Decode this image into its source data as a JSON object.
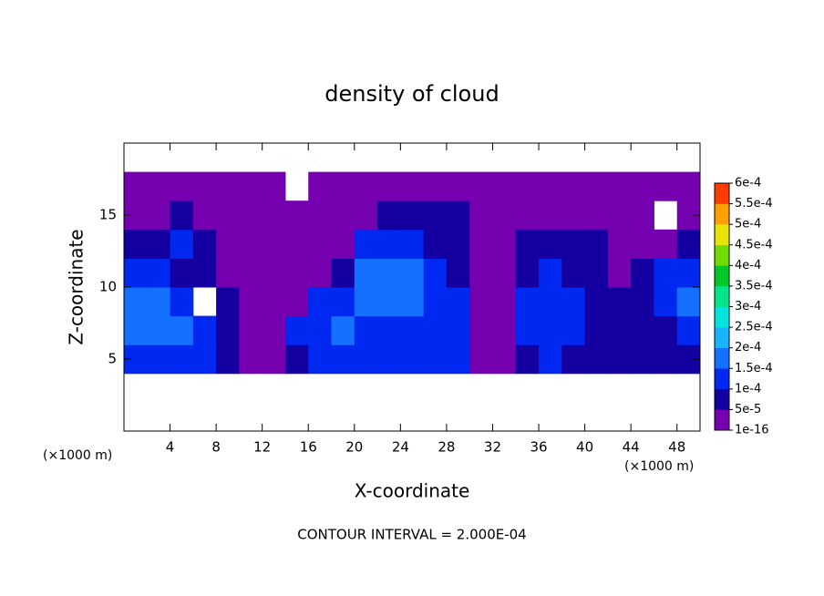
{
  "chart_data": {
    "type": "contour",
    "title": "density of cloud",
    "x_label": "X-coordinate",
    "y_label": "Z-coordinate",
    "x_unit": "(×1000 m)",
    "x_unit_right": "(×1000 m)",
    "footer": "CONTOUR INTERVAL = 2.000E-04",
    "xlim": [
      0,
      50
    ],
    "ylim": [
      0,
      20
    ],
    "xticks": [
      4,
      8,
      12,
      16,
      20,
      24,
      28,
      32,
      36,
      40,
      44,
      48
    ],
    "yticks": [
      5,
      10,
      15
    ],
    "x": [
      1,
      3,
      5,
      7,
      9,
      11,
      13,
      15,
      17,
      19,
      21,
      23,
      25,
      27,
      29,
      31,
      33,
      35,
      37,
      39,
      41,
      43,
      45,
      47,
      49
    ],
    "y": [
      1,
      3,
      5,
      7,
      9,
      11,
      13,
      15,
      17,
      19
    ],
    "z": [
      [
        null,
        null,
        null,
        null,
        null,
        null,
        null,
        null,
        null,
        null,
        null,
        null,
        null,
        null,
        null,
        null,
        null,
        null,
        null,
        null,
        null,
        null,
        null,
        null,
        null
      ],
      [
        null,
        null,
        null,
        null,
        null,
        null,
        null,
        null,
        null,
        null,
        null,
        null,
        null,
        null,
        null,
        null,
        null,
        null,
        null,
        null,
        null,
        null,
        null,
        null,
        null
      ],
      [
        0.00012,
        0.00013,
        0.00012,
        0.0001,
        7e-05,
        3e-05,
        2e-05,
        8e-05,
        0.0001,
        0.00011,
        0.00012,
        0.00012,
        0.00011,
        0.00011,
        0.0001,
        3e-05,
        2e-05,
        8e-05,
        0.0001,
        9e-05,
        8e-05,
        6e-05,
        8e-05,
        7e-05,
        9e-05
      ],
      [
        0.00019,
        0.00018,
        0.00015,
        0.00011,
        8e-05,
        4e-05,
        3e-05,
        0.00012,
        0.00014,
        0.00015,
        0.00014,
        0.00013,
        0.00013,
        0.00012,
        0.00011,
        3e-05,
        2e-05,
        0.0001,
        0.00012,
        0.00011,
        9e-05,
        7e-05,
        8e-05,
        9e-05,
        0.00012
      ],
      [
        0.00019,
        0.00017,
        0.00012,
        null,
        6e-05,
        3e-05,
        2e-05,
        4e-05,
        0.0001,
        0.00012,
        0.00015,
        0.00016,
        0.00015,
        0.00013,
        0.00011,
        4e-05,
        3e-05,
        0.0001,
        0.00013,
        0.00012,
        8e-05,
        6e-05,
        8e-05,
        0.00011,
        0.00015
      ],
      [
        0.00012,
        0.0001,
        8e-05,
        5e-05,
        3e-05,
        2e-05,
        2e-05,
        2e-05,
        2e-05,
        8e-05,
        0.00016,
        0.00018,
        0.00016,
        0.00013,
        9e-05,
        3e-05,
        2e-05,
        9e-05,
        0.00011,
        9e-05,
        6e-05,
        4e-05,
        7e-05,
        0.0001,
        0.0001
      ],
      [
        6e-05,
        9e-05,
        0.0001,
        6e-05,
        3e-05,
        2e-05,
        2e-05,
        2e-05,
        2e-05,
        4e-05,
        0.0001,
        0.00012,
        0.00011,
        9e-05,
        6e-05,
        3e-05,
        2e-05,
        6e-05,
        8e-05,
        9e-05,
        7e-05,
        4e-05,
        3e-05,
        4e-05,
        5e-05
      ],
      [
        2e-05,
        3e-05,
        5e-05,
        3e-05,
        2e-05,
        2e-05,
        2e-05,
        2e-05,
        2e-05,
        2e-05,
        4e-05,
        6e-05,
        7e-05,
        6e-05,
        5e-05,
        3e-05,
        2e-05,
        2e-05,
        2e-05,
        4e-05,
        3e-05,
        2e-05,
        2e-05,
        null,
        2e-05
      ],
      [
        2e-05,
        2e-05,
        2e-05,
        2e-05,
        2e-05,
        2e-05,
        2e-05,
        null,
        2e-05,
        2e-05,
        2e-05,
        2e-05,
        2e-05,
        2e-05,
        2e-05,
        2e-05,
        2e-05,
        2e-05,
        2e-05,
        2e-05,
        2e-05,
        2e-05,
        2e-05,
        2e-05,
        2e-05
      ],
      [
        null,
        null,
        null,
        null,
        null,
        null,
        null,
        null,
        null,
        null,
        null,
        null,
        null,
        null,
        null,
        null,
        null,
        null,
        null,
        null,
        null,
        null,
        null,
        null,
        null
      ]
    ],
    "colorbar": {
      "ticks": [
        {
          "value": 1e-16,
          "label": "1e-16"
        },
        {
          "value": 5e-05,
          "label": "5e-5"
        },
        {
          "value": 0.0001,
          "label": "1e-4"
        },
        {
          "value": 0.00015,
          "label": "1.5e-4"
        },
        {
          "value": 0.0002,
          "label": "2e-4"
        },
        {
          "value": 0.00025,
          "label": "2.5e-4"
        },
        {
          "value": 0.0003,
          "label": "3e-4"
        },
        {
          "value": 0.00035,
          "label": "3.5e-4"
        },
        {
          "value": 0.0004,
          "label": "4e-4"
        },
        {
          "value": 0.00045,
          "label": "4.5e-4"
        },
        {
          "value": 0.0005,
          "label": "5e-4"
        },
        {
          "value": 0.00055,
          "label": "5.5e-4"
        },
        {
          "value": 0.0006,
          "label": "6e-4"
        }
      ],
      "colors": [
        "#7400b0",
        "#1400a0",
        "#0028f0",
        "#1470ff",
        "#18b4ff",
        "#00e4e0",
        "#00e48c",
        "#00c828",
        "#70dc00",
        "#e8e400",
        "#ffa000",
        "#ff3c00"
      ]
    }
  }
}
